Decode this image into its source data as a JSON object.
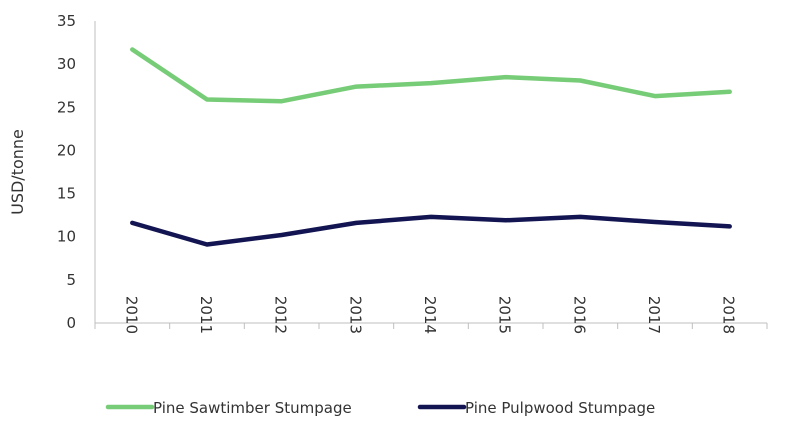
{
  "chart_data": {
    "type": "line",
    "title": "",
    "xlabel": "",
    "ylabel": "USD/tonne",
    "x": [
      "2010",
      "2011",
      "2012",
      "2013",
      "2014",
      "2015",
      "2016",
      "2017",
      "2018"
    ],
    "ylim": [
      0,
      35
    ],
    "yticks": [
      "0",
      "5",
      "10",
      "15",
      "20",
      "25",
      "30",
      "35"
    ],
    "grid": false,
    "legend_position": "bottom",
    "series": [
      {
        "name": "Pine Sawtimber Stumpage",
        "color": "#77cc77",
        "values": [
          31.7,
          25.9,
          25.7,
          27.4,
          27.8,
          28.5,
          28.1,
          26.3,
          26.8
        ]
      },
      {
        "name": "Pine Pulpwood Stumpage",
        "color": "#131552",
        "values": [
          11.6,
          9.1,
          10.2,
          11.6,
          12.3,
          11.9,
          12.3,
          11.7,
          11.2
        ]
      }
    ]
  }
}
